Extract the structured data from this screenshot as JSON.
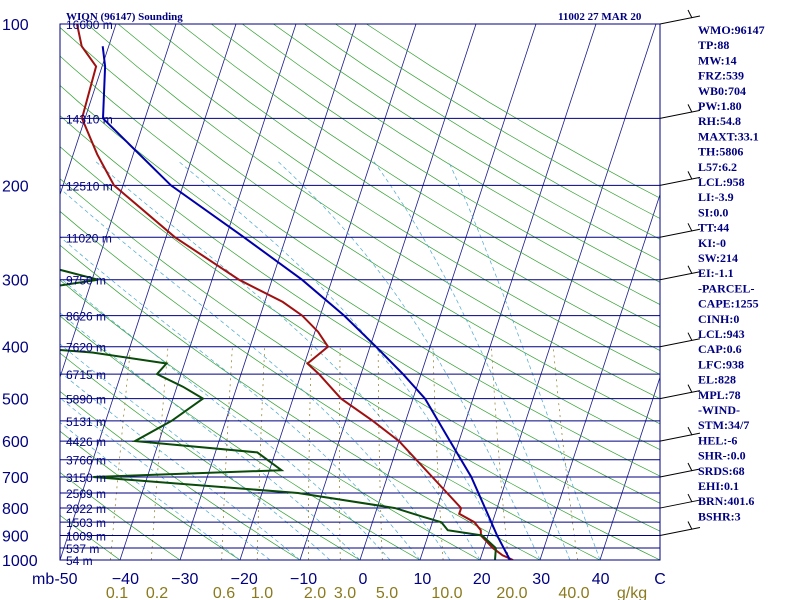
{
  "header": {
    "station": "WIQN (96147) Sounding",
    "time": "11002 27 MAR 20"
  },
  "indices": [
    "WMO:96147",
    "TP:88",
    "MW:14",
    "FRZ:539",
    "WB0:704",
    "PW:1.80",
    "RH:54.8",
    "MAXT:33.1",
    "TH:5806",
    "L57:6.2",
    "LCL:958",
    "LI:-3.9",
    "SI:0.0",
    "TT:44",
    "KI:-0",
    "SW:214",
    "EI:-1.1",
    "-PARCEL-",
    "CAPE:1255",
    "CINH:0",
    "LCL:943",
    "CAP:0.6",
    "LFC:938",
    "EL:828",
    "MPL:78",
    "-WIND-",
    "STM:34/7",
    "HEL:-6",
    "SHR-:0.0",
    "SRDS:68",
    "EHI:0.1",
    "BRN:401.6",
    "BSHR:3"
  ],
  "chart_data": {
    "type": "line",
    "chart_kind": "skew-T log-P sounding",
    "y_axis": {
      "unit_label": "mb",
      "ticks": [
        100,
        200,
        300,
        400,
        500,
        600,
        700,
        800,
        900,
        1000
      ],
      "scale": "log",
      "range": [
        1000,
        100
      ]
    },
    "x_axis": {
      "ticks": [
        -50,
        -40,
        -30,
        -20,
        -10,
        0,
        10,
        20,
        30,
        40
      ],
      "tick_labels": [
        "-50",
        "−40",
        "−30",
        "−20",
        "−10",
        "0",
        "10",
        "20",
        "30",
        "40",
        "C"
      ],
      "range": [
        -50,
        50
      ]
    },
    "mixing_ratio_labels": [
      "0.1",
      "0.2",
      "0.6",
      "1.0",
      "2.0",
      "3.0",
      "5.0",
      "10.0",
      "20.0",
      "40.0",
      "g/kg"
    ],
    "height_levels": [
      {
        "p": 100,
        "label": "16600 m"
      },
      {
        "p": 150,
        "label": "14310 m"
      },
      {
        "p": 200,
        "label": "12510 m"
      },
      {
        "p": 250,
        "label": "11020 m"
      },
      {
        "p": 300,
        "label": "9750 m"
      },
      {
        "p": 350,
        "label": "8626 m"
      },
      {
        "p": 400,
        "label": "7620 m"
      },
      {
        "p": 450,
        "label": "6715 m"
      },
      {
        "p": 500,
        "label": "5890 m"
      },
      {
        "p": 550,
        "label": "5131 m"
      },
      {
        "p": 600,
        "label": "4426 m"
      },
      {
        "p": 650,
        "label": "3766 m"
      },
      {
        "p": 700,
        "label": "3150 m"
      },
      {
        "p": 750,
        "label": "2569 m"
      },
      {
        "p": 800,
        "label": "2022 m"
      },
      {
        "p": 850,
        "label": "1503 m"
      },
      {
        "p": 900,
        "label": "1009 m"
      },
      {
        "p": 950,
        "label": "537 m"
      },
      {
        "p": 1000,
        "label": "54 m"
      }
    ],
    "series": [
      {
        "color": "#a01010",
        "points": [
          [
            100,
            -76.5
          ],
          [
            110,
            -74.5
          ],
          [
            120,
            -71
          ],
          [
            150,
            -70.5
          ],
          [
            175,
            -66
          ],
          [
            200,
            -61.5
          ],
          [
            250,
            -48.5
          ],
          [
            300,
            -35.5
          ],
          [
            330,
            -27
          ],
          [
            350,
            -23
          ],
          [
            375,
            -19.5
          ],
          [
            400,
            -17
          ],
          [
            430,
            -19.5
          ],
          [
            450,
            -17
          ],
          [
            500,
            -12
          ],
          [
            550,
            -5.5
          ],
          [
            600,
            0
          ],
          [
            700,
            7.5
          ],
          [
            800,
            14
          ],
          [
            820,
            14
          ],
          [
            850,
            17
          ],
          [
            880,
            18.5
          ],
          [
            900,
            18.8
          ],
          [
            950,
            21.5
          ],
          [
            980,
            23.5
          ],
          [
            1000,
            25.5
          ]
        ]
      },
      {
        "color": "#0a4a0a",
        "points": [
          [
            100,
            -86
          ],
          [
            110,
            -90
          ],
          [
            150,
            -88
          ],
          [
            175,
            -90
          ],
          [
            200,
            -88
          ],
          [
            225,
            -84
          ],
          [
            250,
            -76
          ],
          [
            270,
            -76
          ],
          [
            300,
            -59
          ],
          [
            330,
            -82
          ],
          [
            350,
            -78
          ],
          [
            390,
            -82
          ],
          [
            410,
            -56
          ],
          [
            430,
            -43
          ],
          [
            450,
            -44
          ],
          [
            475,
            -39
          ],
          [
            500,
            -35
          ],
          [
            550,
            -39
          ],
          [
            600,
            -44
          ],
          [
            630,
            -23
          ],
          [
            680,
            -18
          ],
          [
            700,
            -49
          ],
          [
            750,
            -14
          ],
          [
            800,
            3
          ],
          [
            830,
            8
          ],
          [
            850,
            11.5
          ],
          [
            880,
            13
          ],
          [
            900,
            19
          ],
          [
            950,
            22
          ],
          [
            1000,
            22.5
          ]
        ]
      },
      {
        "color": "#0000aa",
        "points": [
          [
            110,
            -71
          ],
          [
            120,
            -69.5
          ],
          [
            150,
            -67
          ],
          [
            200,
            -52
          ],
          [
            250,
            -37
          ],
          [
            300,
            -25
          ],
          [
            350,
            -16
          ],
          [
            400,
            -9
          ],
          [
            450,
            -3
          ],
          [
            500,
            2
          ],
          [
            600,
            8.5
          ],
          [
            700,
            14
          ],
          [
            800,
            18
          ],
          [
            900,
            21.5
          ],
          [
            1000,
            25
          ]
        ]
      }
    ],
    "wind_barbs": [
      {
        "p": 100,
        "note": "barb"
      },
      {
        "p": 150,
        "note": "barb"
      },
      {
        "p": 200,
        "note": "barb"
      },
      {
        "p": 250,
        "note": "barb"
      },
      {
        "p": 300,
        "note": "barb"
      },
      {
        "p": 400,
        "note": "barb"
      },
      {
        "p": 500,
        "note": "barb"
      },
      {
        "p": 600,
        "note": "barb"
      },
      {
        "p": 700,
        "note": "barb"
      },
      {
        "p": 800,
        "note": "barb"
      },
      {
        "p": 900,
        "note": "barb"
      }
    ]
  },
  "colors": {
    "axis": "#000080",
    "isotherm": "#1a1a8c",
    "dry_adiabat": "#33a033",
    "moist_adiabat": "#4aa8d0",
    "mixing_ratio": "#8a7a1e",
    "background": "#ffffff"
  }
}
